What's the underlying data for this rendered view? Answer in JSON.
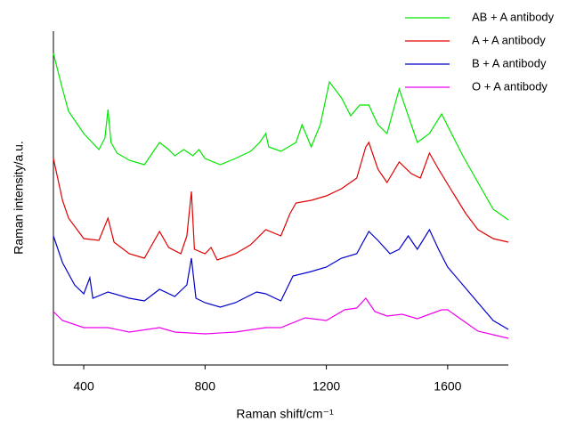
{
  "chart_data": {
    "type": "line",
    "x_label": "Raman shift/cm⁻¹",
    "y_label": "Raman intensity/a.u.",
    "xlim": [
      300,
      1800
    ],
    "xticks": [
      400,
      800,
      1200,
      1600
    ],
    "ylim": [
      0,
      375
    ],
    "series": [
      {
        "name": "AB + A antibody",
        "color": "#00e600",
        "x": [
          300,
          330,
          350,
          400,
          450,
          470,
          480,
          490,
          510,
          550,
          600,
          650,
          680,
          700,
          730,
          760,
          780,
          800,
          850,
          900,
          950,
          980,
          1000,
          1010,
          1050,
          1100,
          1120,
          1150,
          1180,
          1210,
          1250,
          1280,
          1310,
          1340,
          1370,
          1400,
          1440,
          1470,
          1500,
          1540,
          1580,
          1620,
          1650,
          1700,
          1750,
          1800
        ],
        "values": [
          350,
          310,
          285,
          260,
          242,
          255,
          287,
          250,
          238,
          230,
          225,
          250,
          242,
          235,
          242,
          235,
          242,
          232,
          225,
          232,
          240,
          250,
          260,
          245,
          240,
          250,
          270,
          245,
          270,
          318,
          300,
          280,
          292,
          292,
          270,
          260,
          310,
          280,
          250,
          260,
          282,
          255,
          235,
          205,
          175,
          163
        ]
      },
      {
        "name": "A + A antibody",
        "color": "#e00000",
        "x": [
          300,
          330,
          350,
          400,
          450,
          480,
          500,
          550,
          600,
          650,
          680,
          720,
          740,
          755,
          765,
          800,
          820,
          840,
          900,
          950,
          1000,
          1050,
          1080,
          1100,
          1150,
          1200,
          1250,
          1300,
          1330,
          1340,
          1370,
          1400,
          1440,
          1480,
          1510,
          1540,
          1570,
          1620,
          1660,
          1700,
          1750,
          1800
        ],
        "values": [
          232,
          185,
          165,
          142,
          140,
          165,
          138,
          125,
          120,
          150,
          132,
          125,
          145,
          195,
          130,
          125,
          132,
          118,
          125,
          135,
          152,
          145,
          170,
          182,
          185,
          190,
          198,
          210,
          245,
          250,
          220,
          205,
          228,
          215,
          210,
          238,
          220,
          192,
          170,
          152,
          142,
          138
        ]
      },
      {
        "name": "B + A antibody",
        "color": "#0000cc",
        "x": [
          300,
          330,
          370,
          400,
          420,
          430,
          480,
          550,
          600,
          650,
          700,
          740,
          755,
          770,
          800,
          850,
          900,
          970,
          1000,
          1050,
          1090,
          1150,
          1200,
          1250,
          1300,
          1340,
          1370,
          1410,
          1440,
          1470,
          1500,
          1540,
          1570,
          1600,
          1650,
          1700,
          1750,
          1800
        ],
        "values": [
          145,
          115,
          90,
          80,
          98,
          75,
          82,
          75,
          72,
          85,
          77,
          90,
          120,
          75,
          70,
          65,
          70,
          82,
          80,
          72,
          100,
          105,
          110,
          120,
          125,
          150,
          140,
          125,
          130,
          145,
          130,
          152,
          130,
          110,
          90,
          70,
          50,
          40
        ]
      },
      {
        "name": "O + A antibody",
        "color": "#ee00ee",
        "x": [
          300,
          330,
          400,
          480,
          550,
          650,
          700,
          800,
          900,
          1000,
          1050,
          1130,
          1200,
          1260,
          1300,
          1330,
          1360,
          1400,
          1450,
          1500,
          1580,
          1600,
          1650,
          1700,
          1800
        ],
        "values": [
          60,
          50,
          42,
          42,
          37,
          42,
          37,
          35,
          37,
          42,
          42,
          53,
          50,
          62,
          64,
          75,
          60,
          55,
          57,
          52,
          62,
          62,
          50,
          38,
          30
        ]
      }
    ]
  }
}
